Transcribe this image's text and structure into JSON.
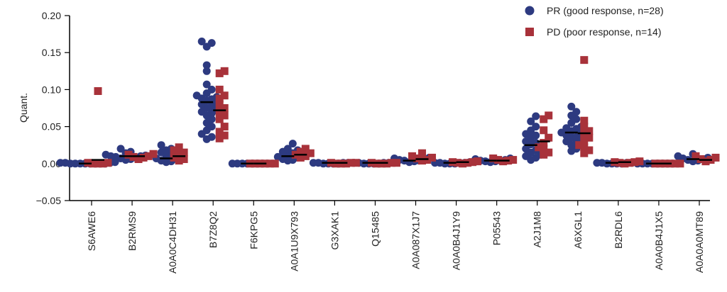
{
  "chart_data": {
    "type": "scatter",
    "ylabel": "Quant.",
    "ylim": [
      -0.05,
      0.2
    ],
    "yticks": [
      "−0.05",
      "0.00",
      "0.05",
      "0.10",
      "0.15",
      "0.20"
    ],
    "yticks_values": [
      -0.05,
      0.0,
      0.05,
      0.1,
      0.15,
      0.2
    ],
    "categories": [
      "S6AWE6",
      "B2RMS9",
      "A0A0C4DH31",
      "B7Z8Q2",
      "F6KPG5",
      "A0A1U9X793",
      "G3XAK1",
      "Q15485",
      "A0A087X1J7",
      "A0A0B4J1Y9",
      "P05543",
      "A2J1M8",
      "A6XGL1",
      "B2RDL6",
      "A0A0B4J1X5",
      "A0A0A0MT89"
    ],
    "legend_position": "top-right",
    "grid": false,
    "series": [
      {
        "name": "PR (good response, n=28)",
        "marker": "circle",
        "color": "#2d3a80",
        "median": [
          0.0,
          0.01,
          0.007,
          0.083,
          0.0,
          0.01,
          0.001,
          0.001,
          0.004,
          0.001,
          0.004,
          0.025,
          0.042,
          0.001,
          0.0,
          0.006
        ],
        "values": [
          [
            0.0,
            0.0,
            0.001,
            0.0,
            0.0,
            0.001,
            0.0,
            0.0,
            0.002,
            0.0,
            0.001,
            0.0
          ],
          [
            0.02,
            0.016,
            0.012,
            0.01,
            0.008,
            0.006,
            0.014,
            0.01,
            0.009,
            0.007,
            0.011,
            0.005
          ],
          [
            0.025,
            0.02,
            0.015,
            0.01,
            0.008,
            0.006,
            0.004,
            0.003,
            0.012,
            0.007,
            0.002,
            0.018
          ],
          [
            0.165,
            0.163,
            0.158,
            0.133,
            0.125,
            0.107,
            0.1,
            0.095,
            0.09,
            0.088,
            0.085,
            0.082,
            0.08,
            0.078,
            0.075,
            0.07,
            0.065,
            0.06,
            0.055,
            0.05,
            0.045,
            0.04,
            0.036,
            0.033,
            0.092,
            0.087,
            0.072,
            0.068
          ],
          [
            0.0,
            0.0,
            0.0,
            0.0,
            0.0,
            0.0,
            0.0,
            0.0
          ],
          [
            0.027,
            0.02,
            0.016,
            0.012,
            0.01,
            0.008,
            0.006,
            0.004,
            0.014,
            0.009,
            0.005,
            0.018
          ],
          [
            0.001,
            0.0,
            0.001,
            0.0,
            0.001,
            0.0,
            0.001,
            0.0
          ],
          [
            0.001,
            0.0,
            0.001,
            0.0,
            0.001,
            0.0,
            0.001,
            0.0
          ],
          [
            0.008,
            0.006,
            0.005,
            0.004,
            0.003,
            0.002,
            0.007,
            0.004
          ],
          [
            0.001,
            0.0,
            0.001,
            0.0,
            0.001,
            0.0,
            0.002,
            0.001
          ],
          [
            0.007,
            0.005,
            0.004,
            0.003,
            0.002,
            0.004,
            0.006,
            0.003
          ],
          [
            0.064,
            0.057,
            0.05,
            0.045,
            0.04,
            0.035,
            0.03,
            0.026,
            0.022,
            0.018,
            0.015,
            0.012,
            0.008,
            0.005,
            0.038,
            0.028,
            0.02,
            0.01
          ],
          [
            0.077,
            0.07,
            0.065,
            0.06,
            0.055,
            0.05,
            0.047,
            0.044,
            0.042,
            0.04,
            0.038,
            0.035,
            0.032,
            0.03,
            0.025,
            0.02,
            0.017,
            0.048,
            0.036,
            0.028
          ],
          [
            0.001,
            0.0,
            0.001,
            0.0,
            0.001,
            0.0,
            0.001,
            0.0
          ],
          [
            0.0,
            0.0,
            0.0,
            0.0,
            0.0,
            0.0,
            0.0,
            0.0
          ],
          [
            0.013,
            0.01,
            0.008,
            0.006,
            0.005,
            0.004,
            0.003,
            0.007
          ]
        ]
      },
      {
        "name": "PD (poor response, n=14)",
        "marker": "square",
        "color": "#a8323a",
        "median": [
          0.005,
          0.01,
          0.01,
          0.072,
          0.0,
          0.012,
          0.001,
          0.001,
          0.006,
          0.002,
          0.004,
          0.03,
          0.041,
          0.002,
          0.0,
          0.005
        ],
        "values": [
          [
            0.098,
            0.0,
            0.0,
            0.001,
            0.0,
            0.001
          ],
          [
            0.013,
            0.01,
            0.008,
            0.006,
            0.012,
            0.009
          ],
          [
            0.022,
            0.018,
            0.012,
            0.008,
            0.006,
            0.004,
            0.015
          ],
          [
            0.125,
            0.122,
            0.1,
            0.092,
            0.088,
            0.08,
            0.075,
            0.07,
            0.065,
            0.06,
            0.05,
            0.043,
            0.038,
            0.034
          ],
          [
            0.0,
            0.0,
            0.0,
            0.0,
            0.0,
            0.0
          ],
          [
            0.02,
            0.016,
            0.012,
            0.01,
            0.008,
            0.014
          ],
          [
            0.001,
            0.0,
            0.001,
            0.0,
            0.001,
            0.0
          ],
          [
            0.001,
            0.0,
            0.001,
            0.0,
            0.001,
            0.0
          ],
          [
            0.014,
            0.01,
            0.007,
            0.005,
            0.004,
            0.008
          ],
          [
            0.003,
            0.002,
            0.001,
            0.0,
            0.002,
            0.001
          ],
          [
            0.007,
            0.005,
            0.004,
            0.003,
            0.005
          ],
          [
            0.065,
            0.06,
            0.045,
            0.035,
            0.028,
            0.022,
            0.015,
            0.012,
            0.02
          ],
          [
            0.14,
            0.058,
            0.05,
            0.044,
            0.04,
            0.035,
            0.03,
            0.025,
            0.018,
            0.014,
            0.022
          ],
          [
            0.003,
            0.002,
            0.001,
            0.0,
            0.002,
            0.001
          ],
          [
            0.0,
            0.0,
            0.0,
            0.0,
            0.0,
            0.0
          ],
          [
            0.01,
            0.008,
            0.005,
            0.003,
            0.006
          ]
        ]
      }
    ]
  }
}
